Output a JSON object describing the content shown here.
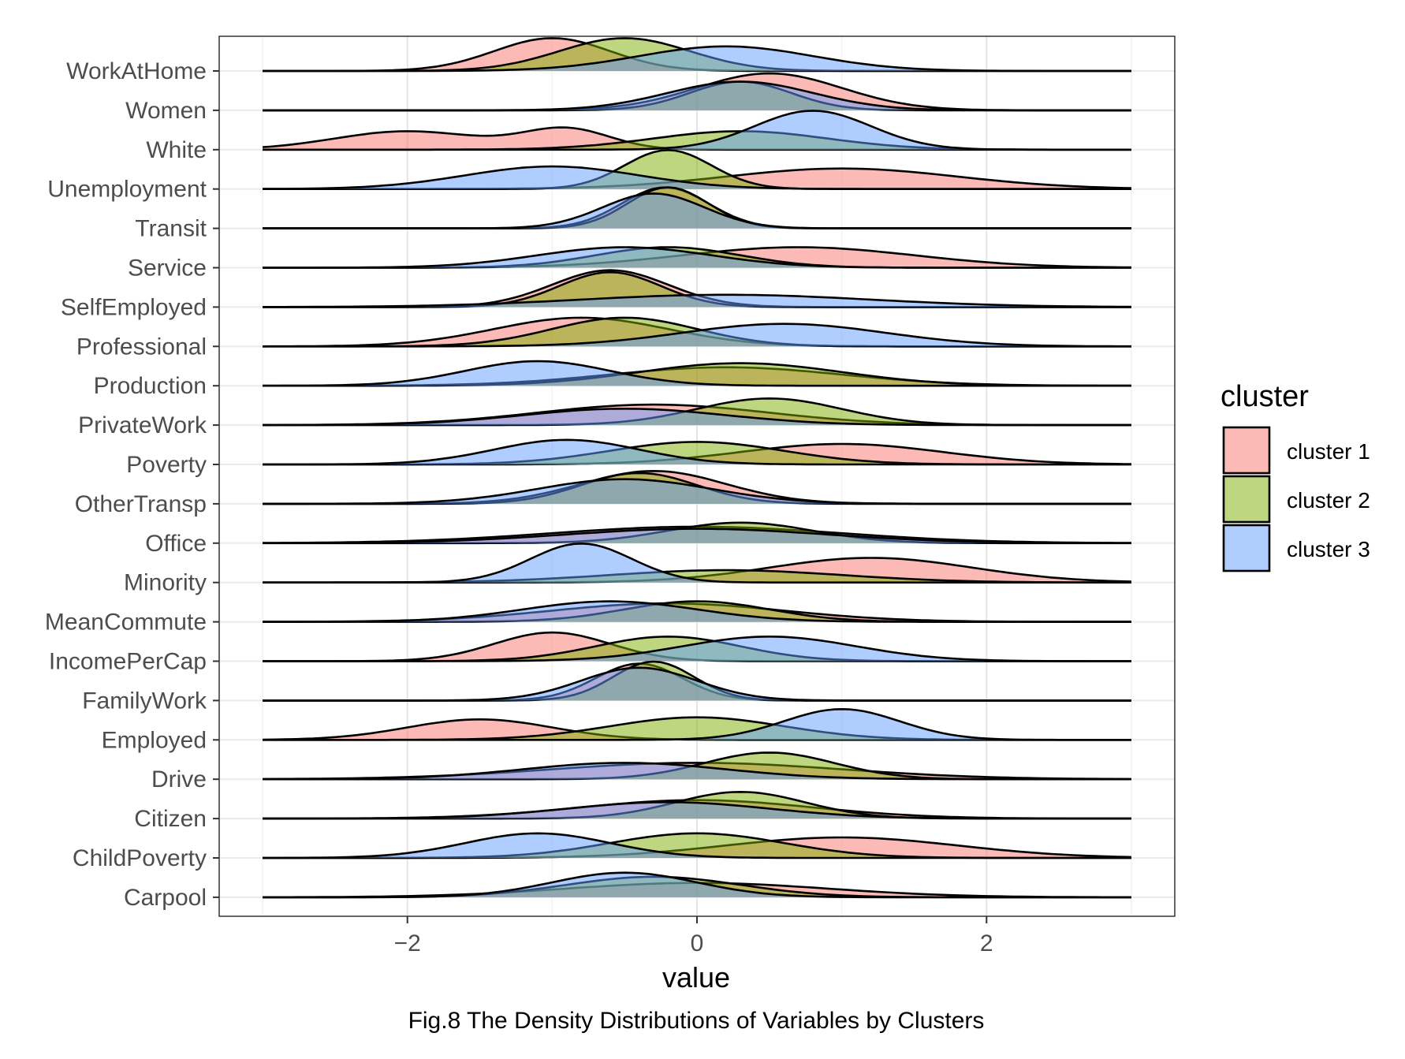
{
  "caption": "Fig.8 The Density Distributions of Variables by Clusters",
  "chart_data": {
    "type": "ridgeline",
    "title": "",
    "xlabel": "value",
    "ylabel": "",
    "xlim": [
      -3.3,
      3.3
    ],
    "x_ticks": [
      -2,
      0,
      2
    ],
    "x_tick_labels": [
      "−2",
      "0",
      "2"
    ],
    "grid": true,
    "legend": {
      "title": "cluster",
      "position": "right",
      "entries": [
        {
          "label": "cluster 1",
          "color": "#F8766D"
        },
        {
          "label": "cluster 2",
          "color": "#7CAE00"
        },
        {
          "label": "cluster 3",
          "color": "#619CFF"
        }
      ]
    },
    "variables": [
      "WorkAtHome",
      "Women",
      "White",
      "Unemployment",
      "Transit",
      "Service",
      "SelfEmployed",
      "Professional",
      "Production",
      "PrivateWork",
      "Poverty",
      "OtherTransp",
      "Office",
      "Minority",
      "MeanCommute",
      "IncomePerCap",
      "FamilyWork",
      "Employed",
      "Drive",
      "Citizen",
      "ChildPoverty",
      "Carpool"
    ],
    "series": [
      {
        "name": "cluster 1",
        "color": "#F8766D",
        "densities": [
          [
            [
              -1.0,
              0.4,
              0.8
            ]
          ],
          [
            [
              0.5,
              0.5,
              0.9
            ]
          ],
          [
            [
              -2.0,
              0.5,
              0.45
            ],
            [
              -0.9,
              0.3,
              0.5
            ]
          ],
          [
            [
              1.0,
              0.8,
              0.5
            ]
          ],
          [
            [
              -0.22,
              0.3,
              1.0
            ]
          ],
          [
            [
              0.7,
              0.8,
              0.5
            ]
          ],
          [
            [
              -0.6,
              0.4,
              0.9
            ]
          ],
          [
            [
              -0.8,
              0.6,
              0.7
            ]
          ],
          [
            [
              0.2,
              0.8,
              0.45
            ]
          ],
          [
            [
              -0.3,
              0.8,
              0.5
            ]
          ],
          [
            [
              1.0,
              0.7,
              0.5
            ]
          ],
          [
            [
              -0.3,
              0.5,
              0.8
            ]
          ],
          [
            [
              0.0,
              1.0,
              0.4
            ]
          ],
          [
            [
              1.2,
              0.7,
              0.6
            ]
          ],
          [
            [
              -0.2,
              0.8,
              0.45
            ]
          ],
          [
            [
              -1.0,
              0.4,
              0.7
            ]
          ],
          [
            [
              -0.4,
              0.3,
              0.9
            ]
          ],
          [
            [
              -1.5,
              0.5,
              0.5
            ]
          ],
          [
            [
              0.0,
              1.0,
              0.4
            ]
          ],
          [
            [
              0.0,
              0.8,
              0.45
            ]
          ],
          [
            [
              1.0,
              0.8,
              0.5
            ]
          ],
          [
            [
              0.0,
              0.9,
              0.35
            ]
          ]
        ]
      },
      {
        "name": "cluster 2",
        "color": "#7CAE00",
        "densities": [
          [
            [
              -0.5,
              0.45,
              0.8
            ]
          ],
          [
            [
              0.3,
              0.35,
              0.7
            ]
          ],
          [
            [
              0.3,
              0.6,
              0.45
            ]
          ],
          [
            [
              -0.2,
              0.3,
              0.95
            ]
          ],
          [
            [
              -0.2,
              0.28,
              1.0
            ]
          ],
          [
            [
              -0.2,
              0.5,
              0.5
            ]
          ],
          [
            [
              -0.6,
              0.35,
              0.85
            ]
          ],
          [
            [
              -0.5,
              0.5,
              0.7
            ]
          ],
          [
            [
              0.3,
              0.7,
              0.55
            ]
          ],
          [
            [
              0.5,
              0.5,
              0.65
            ]
          ],
          [
            [
              0.0,
              0.6,
              0.55
            ]
          ],
          [
            [
              -0.4,
              0.4,
              0.75
            ]
          ],
          [
            [
              0.3,
              0.5,
              0.5
            ]
          ],
          [
            [
              0.2,
              0.8,
              0.3
            ]
          ],
          [
            [
              0.0,
              0.5,
              0.5
            ]
          ],
          [
            [
              -0.2,
              0.5,
              0.6
            ]
          ],
          [
            [
              -0.3,
              0.28,
              0.95
            ]
          ],
          [
            [
              0.0,
              0.6,
              0.55
            ]
          ],
          [
            [
              0.5,
              0.45,
              0.65
            ]
          ],
          [
            [
              0.3,
              0.45,
              0.65
            ]
          ],
          [
            [
              0.0,
              0.6,
              0.6
            ]
          ],
          [
            [
              -0.3,
              0.6,
              0.5
            ]
          ]
        ]
      },
      {
        "name": "cluster 3",
        "color": "#619CFF",
        "densities": [
          [
            [
              0.2,
              0.6,
              0.6
            ]
          ],
          [
            [
              0.3,
              0.5,
              0.7
            ]
          ],
          [
            [
              0.8,
              0.4,
              0.95
            ]
          ],
          [
            [
              -1.0,
              0.6,
              0.55
            ]
          ],
          [
            [
              -0.3,
              0.35,
              0.85
            ]
          ],
          [
            [
              -0.5,
              0.6,
              0.5
            ]
          ],
          [
            [
              0.2,
              1.0,
              0.3
            ]
          ],
          [
            [
              0.6,
              0.7,
              0.55
            ]
          ],
          [
            [
              -1.1,
              0.5,
              0.6
            ]
          ],
          [
            [
              -0.5,
              0.7,
              0.4
            ]
          ],
          [
            [
              -0.9,
              0.5,
              0.6
            ]
          ],
          [
            [
              -0.5,
              0.6,
              0.6
            ]
          ],
          [
            [
              0.0,
              0.9,
              0.35
            ]
          ],
          [
            [
              -0.8,
              0.35,
              0.95
            ]
          ],
          [
            [
              -0.6,
              0.6,
              0.5
            ]
          ],
          [
            [
              0.5,
              0.6,
              0.6
            ]
          ],
          [
            [
              -0.4,
              0.4,
              0.8
            ]
          ],
          [
            [
              1.0,
              0.4,
              0.75
            ]
          ],
          [
            [
              -0.5,
              0.7,
              0.4
            ]
          ],
          [
            [
              -0.2,
              0.7,
              0.4
            ]
          ],
          [
            [
              -1.1,
              0.5,
              0.6
            ]
          ],
          [
            [
              -0.5,
              0.5,
              0.6
            ]
          ]
        ]
      }
    ]
  }
}
